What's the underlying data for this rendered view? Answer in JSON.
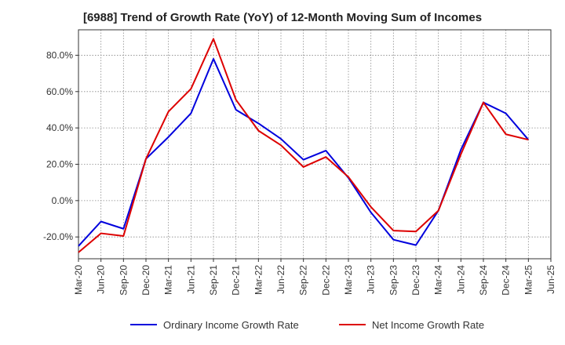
{
  "chart_data": {
    "type": "line",
    "title": "[6988]  Trend of Growth Rate (YoY) of 12-Month Moving Sum of Incomes",
    "xlabel": "",
    "ylabel": "",
    "categories": [
      "Mar-20",
      "Jun-20",
      "Sep-20",
      "Dec-20",
      "Mar-21",
      "Jun-21",
      "Sep-21",
      "Dec-21",
      "Mar-22",
      "Jun-22",
      "Sep-22",
      "Dec-22",
      "Mar-23",
      "Jun-23",
      "Sep-23",
      "Dec-23",
      "Mar-24",
      "Jun-24",
      "Sep-24",
      "Dec-24",
      "Mar-25",
      "Jun-25"
    ],
    "ylim": [
      -32,
      94
    ],
    "yticks": [
      -20,
      0,
      20,
      40,
      60,
      80
    ],
    "ytick_labels": [
      "-20.0%",
      "0.0%",
      "20.0%",
      "40.0%",
      "60.0%",
      "80.0%"
    ],
    "grid": true,
    "legend_position": "bottom",
    "series": [
      {
        "name": "Ordinary Income Growth Rate",
        "color": "#0000dd",
        "values": [
          -25.0,
          -11.5,
          -15.5,
          23.0,
          35.0,
          48.0,
          78.0,
          50.0,
          42.5,
          34.0,
          22.5,
          27.5,
          12.5,
          -6.5,
          -21.5,
          -24.5,
          -5.5,
          28.0,
          54.0,
          48.0,
          33.5,
          null
        ]
      },
      {
        "name": "Net Income Growth Rate",
        "color": "#dd0000",
        "values": [
          -28.5,
          -18.0,
          -19.5,
          23.0,
          49.0,
          61.5,
          89.0,
          55.5,
          38.5,
          30.5,
          18.5,
          24.0,
          13.0,
          -3.5,
          -16.5,
          -17.0,
          -5.5,
          25.5,
          54.0,
          36.5,
          33.5,
          null
        ]
      }
    ]
  }
}
